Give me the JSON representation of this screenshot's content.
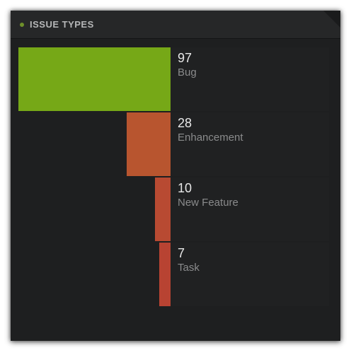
{
  "widget": {
    "title": "ISSUE TYPES"
  },
  "chart_data": {
    "type": "bar",
    "orientation": "horizontal",
    "categories": [
      "Bug",
      "Enhancement",
      "New Feature",
      "Task"
    ],
    "values": [
      97,
      28,
      10,
      7
    ],
    "colors": [
      "#76a817",
      "#b8552f",
      "#b84a32",
      "#b84332"
    ],
    "title": "ISSUE TYPES"
  },
  "colors": {
    "panel_bg": "#1e1f20",
    "header_bg": "#262728",
    "status_dot": "#6e8f2a"
  }
}
